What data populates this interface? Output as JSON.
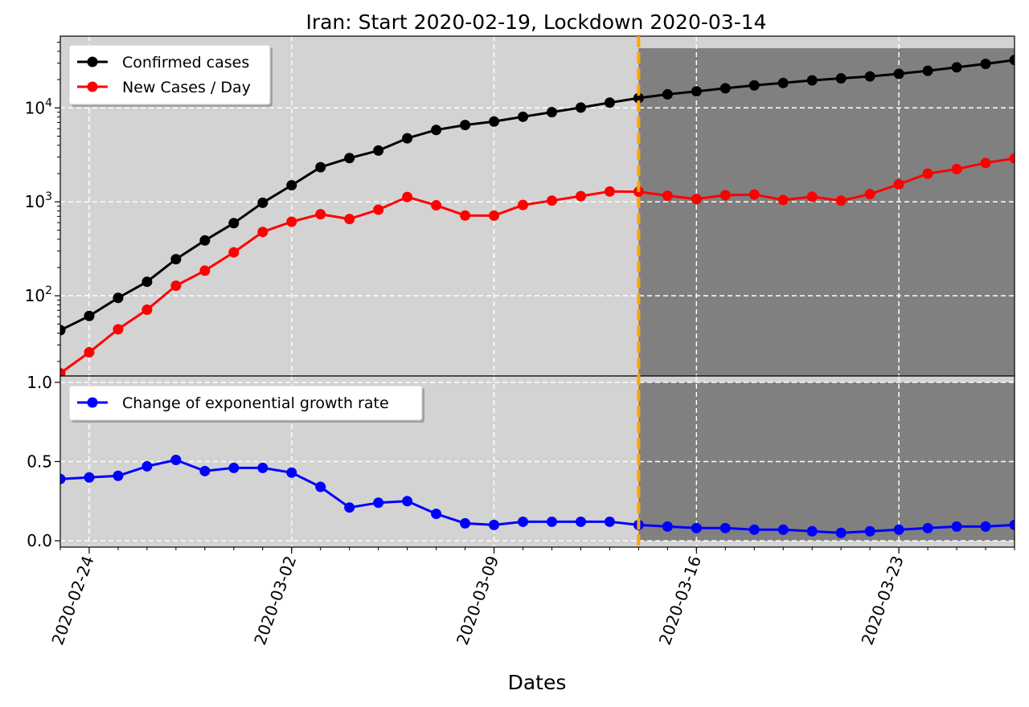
{
  "title": "Iran: Start 2020-02-19, Lockdown 2020-03-14",
  "xlabel": "Dates",
  "colors": {
    "pre_lockdown_bg": "#d3d3d3",
    "post_lockdown_bg": "#808080",
    "lockdown_line": "#ffa500",
    "grid": "#ffffff",
    "confirmed": "#000000",
    "new_cases": "#ff0000",
    "growth": "#0000ff"
  },
  "chart_data": [
    {
      "type": "line",
      "name": "cases-panel",
      "yscale": "log",
      "ylim": [
        14,
        58000
      ],
      "xlim": [
        "2020-02-23",
        "2020-03-27"
      ],
      "grid": true,
      "legend_position": "top-left",
      "yticks": [
        {
          "value": 100,
          "base": "10",
          "exp": "2"
        },
        {
          "value": 1000,
          "base": "10",
          "exp": "3"
        },
        {
          "value": 10000,
          "base": "10",
          "exp": "4"
        }
      ],
      "lockdown_date": "2020-03-14",
      "x": [
        "2020-02-23",
        "2020-02-24",
        "2020-02-25",
        "2020-02-26",
        "2020-02-27",
        "2020-02-28",
        "2020-02-29",
        "2020-03-01",
        "2020-03-02",
        "2020-03-03",
        "2020-03-04",
        "2020-03-05",
        "2020-03-06",
        "2020-03-07",
        "2020-03-08",
        "2020-03-09",
        "2020-03-10",
        "2020-03-11",
        "2020-03-12",
        "2020-03-13",
        "2020-03-14",
        "2020-03-15",
        "2020-03-16",
        "2020-03-17",
        "2020-03-18",
        "2020-03-19",
        "2020-03-20",
        "2020-03-21",
        "2020-03-22",
        "2020-03-23",
        "2020-03-24",
        "2020-03-25",
        "2020-03-26",
        "2020-03-27"
      ],
      "series": [
        {
          "name": "Confirmed cases",
          "color": "#000000",
          "values": [
            43,
            61,
            95,
            141,
            245,
            388,
            593,
            978,
            1501,
            2336,
            2922,
            3513,
            4747,
            5823,
            6566,
            7161,
            8042,
            9000,
            10075,
            11364,
            12729,
            13938,
            14991,
            16169,
            17361,
            18407,
            19644,
            20610,
            21638,
            23049,
            24811,
            27017,
            29406,
            32332
          ]
        },
        {
          "name": "New Cases / Day",
          "color": "#ff0000",
          "values": [
            15,
            25,
            44,
            71,
            128,
            185,
            290,
            478,
            614,
            738,
            656,
            825,
            1125,
            918,
            715,
            713,
            925,
            1030,
            1150,
            1289,
            1283,
            1162,
            1071,
            1178,
            1195,
            1046,
            1133,
            1028,
            1209,
            1537,
            1996,
            2230,
            2592,
            2900
          ]
        }
      ]
    },
    {
      "type": "line",
      "name": "growth-panel",
      "ylim": [
        -0.04,
        1.04
      ],
      "xlim": [
        "2020-02-23",
        "2020-03-27"
      ],
      "grid": true,
      "legend_position": "top-left",
      "yticks": [
        {
          "value": 0.0,
          "label": "0.0"
        },
        {
          "value": 0.5,
          "label": "0.5"
        },
        {
          "value": 1.0,
          "label": "1.0"
        }
      ],
      "xticks": [
        "2020-02-24",
        "2020-03-02",
        "2020-03-09",
        "2020-03-16",
        "2020-03-23"
      ],
      "x": [
        "2020-02-23",
        "2020-02-24",
        "2020-02-25",
        "2020-02-26",
        "2020-02-27",
        "2020-02-28",
        "2020-02-29",
        "2020-03-01",
        "2020-03-02",
        "2020-03-03",
        "2020-03-04",
        "2020-03-05",
        "2020-03-06",
        "2020-03-07",
        "2020-03-08",
        "2020-03-09",
        "2020-03-10",
        "2020-03-11",
        "2020-03-12",
        "2020-03-13",
        "2020-03-14",
        "2020-03-15",
        "2020-03-16",
        "2020-03-17",
        "2020-03-18",
        "2020-03-19",
        "2020-03-20",
        "2020-03-21",
        "2020-03-22",
        "2020-03-23",
        "2020-03-24",
        "2020-03-25",
        "2020-03-26",
        "2020-03-27"
      ],
      "series": [
        {
          "name": "Change of exponential growth rate",
          "color": "#0000ff",
          "values": [
            0.39,
            0.4,
            0.41,
            0.47,
            0.51,
            0.44,
            0.46,
            0.46,
            0.43,
            0.34,
            0.21,
            0.24,
            0.25,
            0.17,
            0.11,
            0.1,
            0.12,
            0.12,
            0.12,
            0.12,
            0.1,
            0.09,
            0.08,
            0.08,
            0.07,
            0.07,
            0.06,
            0.05,
            0.06,
            0.07,
            0.08,
            0.09,
            0.09,
            0.1
          ]
        }
      ]
    }
  ]
}
